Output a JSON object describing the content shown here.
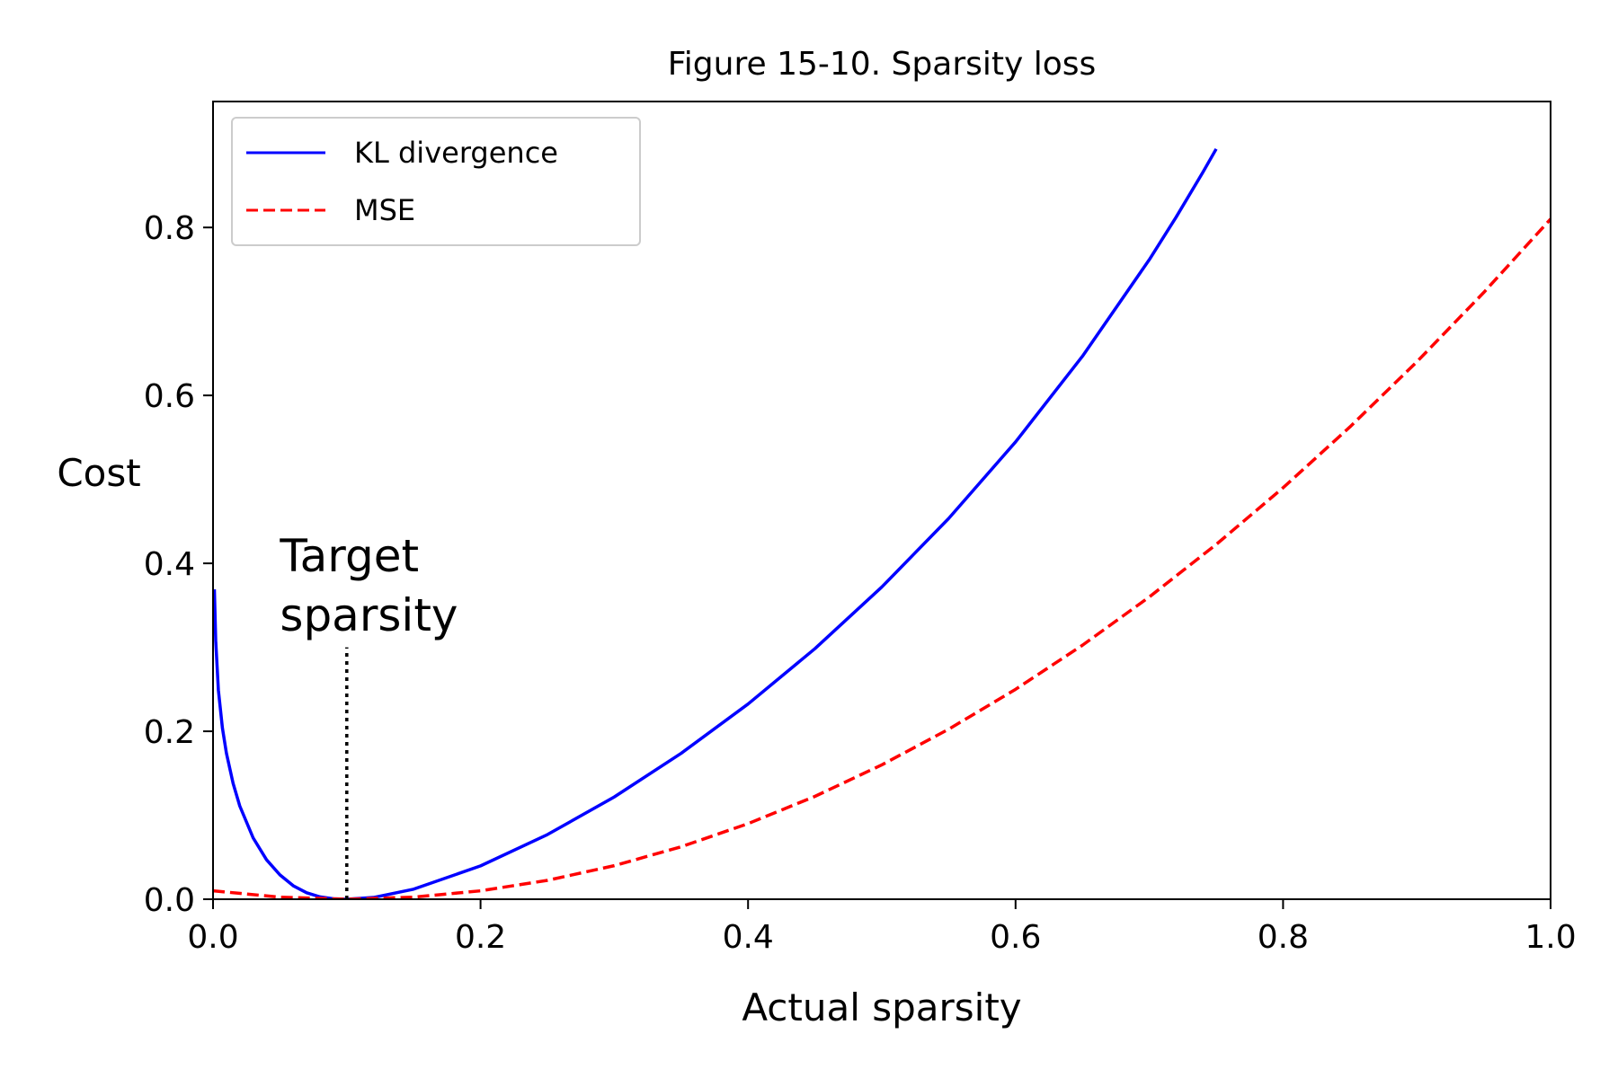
{
  "chart_data": {
    "type": "line",
    "title": "Figure 15-10. Sparsity loss",
    "xlabel": "Actual sparsity",
    "ylabel": "Cost",
    "xlim": [
      0.0,
      1.0
    ],
    "ylim": [
      0.0,
      0.95
    ],
    "xticks": [
      0.0,
      0.2,
      0.4,
      0.6,
      0.8,
      1.0
    ],
    "xtick_labels": [
      "0.0",
      "0.2",
      "0.4",
      "0.6",
      "0.8",
      "1.0"
    ],
    "yticks": [
      0.0,
      0.2,
      0.4,
      0.6,
      0.8
    ],
    "ytick_labels": [
      "0.0",
      "0.2",
      "0.4",
      "0.6",
      "0.8"
    ],
    "grid": false,
    "legend": {
      "placement": "upper-left"
    },
    "series": [
      {
        "name": "KL divergence",
        "color": "#0000ff",
        "style": "solid",
        "x": [
          0.001,
          0.002,
          0.004,
          0.007,
          0.01,
          0.015,
          0.02,
          0.03,
          0.04,
          0.05,
          0.06,
          0.07,
          0.08,
          0.09,
          0.1,
          0.12,
          0.15,
          0.2,
          0.25,
          0.3,
          0.35,
          0.4,
          0.45,
          0.5,
          0.55,
          0.6,
          0.65,
          0.7,
          0.72,
          0.74,
          0.75
        ],
        "y": [
          0.369,
          0.308,
          0.249,
          0.204,
          0.174,
          0.138,
          0.111,
          0.073,
          0.047,
          0.029,
          0.016,
          0.0077,
          0.0028,
          0.00059,
          0.0,
          0.0021,
          0.012,
          0.0397,
          0.077,
          0.1218,
          0.1738,
          0.2325,
          0.2984,
          0.3718,
          0.4535,
          0.5446,
          0.6466,
          0.7617,
          0.8122,
          0.8656,
          0.8935
        ]
      },
      {
        "name": "MSE",
        "color": "#ff0000",
        "style": "dashed",
        "x": [
          0.0,
          0.05,
          0.1,
          0.15,
          0.2,
          0.25,
          0.3,
          0.35,
          0.4,
          0.45,
          0.5,
          0.55,
          0.6,
          0.65,
          0.7,
          0.75,
          0.8,
          0.85,
          0.9,
          0.95,
          1.0
        ],
        "y": [
          0.01,
          0.0025,
          0.0,
          0.0025,
          0.01,
          0.0225,
          0.04,
          0.0625,
          0.09,
          0.1225,
          0.16,
          0.2025,
          0.25,
          0.3025,
          0.36,
          0.4225,
          0.49,
          0.5625,
          0.64,
          0.7225,
          0.81
        ]
      }
    ],
    "annotations": [
      {
        "text_lines": [
          "Target",
          "sparsity"
        ],
        "x": 0.05,
        "y": 0.32
      },
      {
        "type": "vline",
        "style": "dotted",
        "color": "#000000",
        "x": 0.1,
        "y_range": [
          0.0,
          0.3
        ]
      }
    ]
  }
}
